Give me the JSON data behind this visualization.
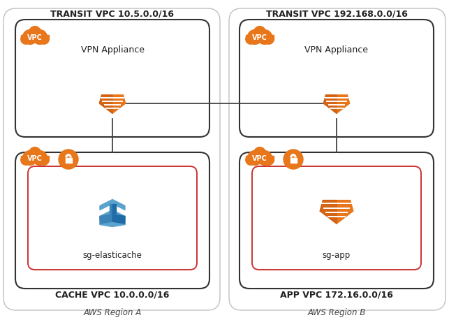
{
  "bg_color": "#ffffff",
  "region_a_label": "AWS Region A",
  "region_b_label": "AWS Region B",
  "transit_vpc_a_label": "TRANSIT VPC 10.5.0.0/16",
  "transit_vpc_b_label": "TRANSIT VPC 192.168.0.0/16",
  "cache_vpc_label": "CACHE VPC 10.0.0.0/16",
  "app_vpc_label": "APP VPC 172.16.0.0/16",
  "vpn_appliance_label": "VPN Appliance",
  "sg_elasticache_label": "sg-elasticache",
  "sg_app_label": "sg-app",
  "vpc_label": "VPC",
  "orange": "#E8761A",
  "orange_light": "#F0A050",
  "orange_dark": "#C05010",
  "blue1": "#1F6BA5",
  "blue2": "#5BA3CC",
  "blue3": "#3A84B8",
  "box_border": "#333333",
  "red_border": "#CC3333",
  "region_border": "#C0C0C0",
  "figw": 6.43,
  "figh": 4.58,
  "dpi": 100
}
